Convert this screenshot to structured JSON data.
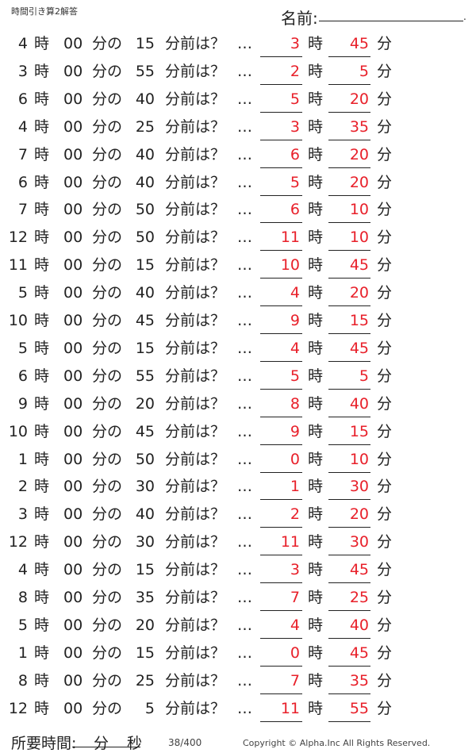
{
  "header": {
    "title": "時間引き算2解答",
    "name_label": "名前:",
    "name_dot": "."
  },
  "labels": {
    "hour": "時",
    "minute_of": "分の",
    "before_q": "分前は？",
    "ellipsis": "…",
    "minute": "分",
    "zeros": "00"
  },
  "rows": [
    {
      "h": "4",
      "m": "15",
      "ah": "3",
      "am": "45"
    },
    {
      "h": "3",
      "m": "55",
      "ah": "2",
      "am": "5"
    },
    {
      "h": "6",
      "m": "40",
      "ah": "5",
      "am": "20"
    },
    {
      "h": "4",
      "m": "25",
      "ah": "3",
      "am": "35"
    },
    {
      "h": "7",
      "m": "40",
      "ah": "6",
      "am": "20"
    },
    {
      "h": "6",
      "m": "40",
      "ah": "5",
      "am": "20"
    },
    {
      "h": "7",
      "m": "50",
      "ah": "6",
      "am": "10"
    },
    {
      "h": "12",
      "m": "50",
      "ah": "11",
      "am": "10"
    },
    {
      "h": "11",
      "m": "15",
      "ah": "10",
      "am": "45"
    },
    {
      "h": "5",
      "m": "40",
      "ah": "4",
      "am": "20"
    },
    {
      "h": "10",
      "m": "45",
      "ah": "9",
      "am": "15"
    },
    {
      "h": "5",
      "m": "15",
      "ah": "4",
      "am": "45"
    },
    {
      "h": "6",
      "m": "55",
      "ah": "5",
      "am": "5"
    },
    {
      "h": "9",
      "m": "20",
      "ah": "8",
      "am": "40"
    },
    {
      "h": "10",
      "m": "45",
      "ah": "9",
      "am": "15"
    },
    {
      "h": "1",
      "m": "50",
      "ah": "0",
      "am": "10"
    },
    {
      "h": "2",
      "m": "30",
      "ah": "1",
      "am": "30"
    },
    {
      "h": "3",
      "m": "40",
      "ah": "2",
      "am": "20"
    },
    {
      "h": "12",
      "m": "30",
      "ah": "11",
      "am": "30"
    },
    {
      "h": "4",
      "m": "15",
      "ah": "3",
      "am": "45"
    },
    {
      "h": "8",
      "m": "35",
      "ah": "7",
      "am": "25"
    },
    {
      "h": "5",
      "m": "20",
      "ah": "4",
      "am": "40"
    },
    {
      "h": "1",
      "m": "15",
      "ah": "0",
      "am": "45"
    },
    {
      "h": "8",
      "m": "25",
      "ah": "7",
      "am": "35"
    },
    {
      "h": "12",
      "m": "5",
      "ah": "11",
      "am": "55"
    }
  ],
  "footer": {
    "time_label": "所要時間:",
    "min": "分",
    "sec": "秒",
    "page": "38/400",
    "copyright": "Copyright ©  Alpha.Inc All Rights Reserved."
  },
  "colors": {
    "answer": "#e8202a"
  }
}
